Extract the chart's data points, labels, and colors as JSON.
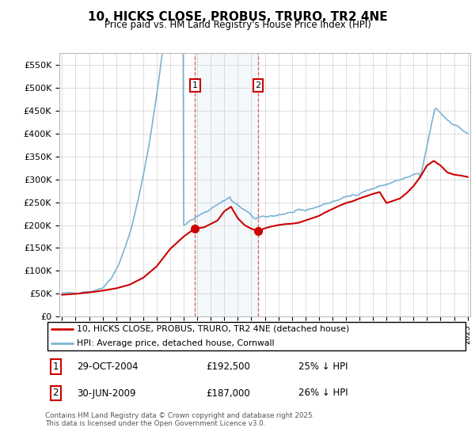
{
  "title": "10, HICKS CLOSE, PROBUS, TRURO, TR2 4NE",
  "subtitle": "Price paid vs. HM Land Registry's House Price Index (HPI)",
  "ylim": [
    0,
    575000
  ],
  "yticks": [
    0,
    50000,
    100000,
    150000,
    200000,
    250000,
    300000,
    350000,
    400000,
    450000,
    500000,
    550000
  ],
  "ytick_labels": [
    "£0",
    "£50K",
    "£100K",
    "£150K",
    "£200K",
    "£250K",
    "£300K",
    "£350K",
    "£400K",
    "£450K",
    "£500K",
    "£550K"
  ],
  "hpi_color": "#7ab3d4",
  "price_color": "#cc0000",
  "x_start_year": 1995,
  "x_end_year": 2025,
  "marker1_year": 2004.83,
  "marker2_year": 2009.5,
  "marker1_price": 192500,
  "marker2_price": 187000,
  "legend1": "10, HICKS CLOSE, PROBUS, TRURO, TR2 4NE (detached house)",
  "legend2": "HPI: Average price, detached house, Cornwall",
  "row1_box": "1",
  "row1_date": "29-OCT-2004",
  "row1_price": "£192,500",
  "row1_pct": "25% ↓ HPI",
  "row2_box": "2",
  "row2_date": "30-JUN-2009",
  "row2_price": "£187,000",
  "row2_pct": "26% ↓ HPI",
  "footnote": "Contains HM Land Registry data © Crown copyright and database right 2025.\nThis data is licensed under the Open Government Licence v3.0.",
  "hpi_years": [
    1995.0,
    1995.083,
    1995.167,
    1995.25,
    1995.333,
    1995.417,
    1995.5,
    1995.583,
    1995.667,
    1995.75,
    1995.833,
    1995.917,
    1996.0,
    1996.083,
    1996.167,
    1996.25,
    1996.333,
    1996.417,
    1996.5,
    1996.583,
    1996.667,
    1996.75,
    1996.833,
    1996.917,
    1997.0,
    1997.083,
    1997.167,
    1997.25,
    1997.333,
    1997.417,
    1997.5,
    1997.583,
    1997.667,
    1997.75,
    1997.833,
    1997.917,
    1998.0,
    1998.083,
    1998.167,
    1998.25,
    1998.333,
    1998.417,
    1998.5,
    1998.583,
    1998.667,
    1998.75,
    1998.833,
    1998.917,
    1999.0,
    1999.083,
    1999.167,
    1999.25,
    1999.333,
    1999.417,
    1999.5,
    1999.583,
    1999.667,
    1999.75,
    1999.833,
    1999.917,
    2000.0,
    2000.083,
    2000.167,
    2000.25,
    2000.333,
    2000.417,
    2000.5,
    2000.583,
    2000.667,
    2000.75,
    2000.833,
    2000.917,
    2001.0,
    2001.083,
    2001.167,
    2001.25,
    2001.333,
    2001.417,
    2001.5,
    2001.583,
    2001.667,
    2001.75,
    2001.833,
    2001.917,
    2002.0,
    2002.083,
    2002.167,
    2002.25,
    2002.333,
    2002.417,
    2002.5,
    2002.583,
    2002.667,
    2002.75,
    2002.833,
    2002.917,
    2003.0,
    2003.083,
    2003.167,
    2003.25,
    2003.333,
    2003.417,
    2003.5,
    2003.583,
    2003.667,
    2003.75,
    2003.833,
    2003.917,
    2004.0,
    2004.083,
    2004.167,
    2004.25,
    2004.333,
    2004.417,
    2004.5,
    2004.583,
    2004.667,
    2004.75,
    2004.833,
    2004.917,
    2005.0,
    2005.083,
    2005.167,
    2005.25,
    2005.333,
    2005.417,
    2005.5,
    2005.583,
    2005.667,
    2005.75,
    2005.833,
    2005.917,
    2006.0,
    2006.083,
    2006.167,
    2006.25,
    2006.333,
    2006.417,
    2006.5,
    2006.583,
    2006.667,
    2006.75,
    2006.833,
    2006.917,
    2007.0,
    2007.083,
    2007.167,
    2007.25,
    2007.333,
    2007.417,
    2007.5,
    2007.583,
    2007.667,
    2007.75,
    2007.833,
    2007.917,
    2008.0,
    2008.083,
    2008.167,
    2008.25,
    2008.333,
    2008.417,
    2008.5,
    2008.583,
    2008.667,
    2008.75,
    2008.833,
    2008.917,
    2009.0,
    2009.083,
    2009.167,
    2009.25,
    2009.333,
    2009.417,
    2009.5,
    2009.583,
    2009.667,
    2009.75,
    2009.833,
    2009.917,
    2010.0,
    2010.083,
    2010.167,
    2010.25,
    2010.333,
    2010.417,
    2010.5,
    2010.583,
    2010.667,
    2010.75,
    2010.833,
    2010.917,
    2011.0,
    2011.083,
    2011.167,
    2011.25,
    2011.333,
    2011.417,
    2011.5,
    2011.583,
    2011.667,
    2011.75,
    2011.833,
    2011.917,
    2012.0,
    2012.083,
    2012.167,
    2012.25,
    2012.333,
    2012.417,
    2012.5,
    2012.583,
    2012.667,
    2012.75,
    2012.833,
    2012.917,
    2013.0,
    2013.083,
    2013.167,
    2013.25,
    2013.333,
    2013.417,
    2013.5,
    2013.583,
    2013.667,
    2013.75,
    2013.833,
    2013.917,
    2014.0,
    2014.083,
    2014.167,
    2014.25,
    2014.333,
    2014.417,
    2014.5,
    2014.583,
    2014.667,
    2014.75,
    2014.833,
    2014.917,
    2015.0,
    2015.083,
    2015.167,
    2015.25,
    2015.333,
    2015.417,
    2015.5,
    2015.583,
    2015.667,
    2015.75,
    2015.833,
    2015.917,
    2016.0,
    2016.083,
    2016.167,
    2016.25,
    2016.333,
    2016.417,
    2016.5,
    2016.583,
    2016.667,
    2016.75,
    2016.833,
    2016.917,
    2017.0,
    2017.083,
    2017.167,
    2017.25,
    2017.333,
    2017.417,
    2017.5,
    2017.583,
    2017.667,
    2017.75,
    2017.833,
    2017.917,
    2018.0,
    2018.083,
    2018.167,
    2018.25,
    2018.333,
    2018.417,
    2018.5,
    2018.583,
    2018.667,
    2018.75,
    2018.833,
    2018.917,
    2019.0,
    2019.083,
    2019.167,
    2019.25,
    2019.333,
    2019.417,
    2019.5,
    2019.583,
    2019.667,
    2019.75,
    2019.833,
    2019.917,
    2020.0,
    2020.083,
    2020.167,
    2020.25,
    2020.333,
    2020.417,
    2020.5,
    2020.583,
    2020.667,
    2020.75,
    2020.833,
    2020.917,
    2021.0,
    2021.083,
    2021.167,
    2021.25,
    2021.333,
    2021.417,
    2021.5,
    2021.583,
    2021.667,
    2021.75,
    2021.833,
    2021.917,
    2022.0,
    2022.083,
    2022.167,
    2022.25,
    2022.333,
    2022.417,
    2022.5,
    2022.583,
    2022.667,
    2022.75,
    2022.833,
    2022.917,
    2023.0,
    2023.083,
    2023.167,
    2023.25,
    2023.333,
    2023.417,
    2023.5,
    2023.583,
    2023.667,
    2023.75,
    2023.833,
    2023.917,
    2024.0,
    2024.083,
    2024.167,
    2024.25,
    2024.333,
    2024.417,
    2024.5,
    2024.583,
    2024.667,
    2024.75,
    2024.833,
    2024.917,
    2025.0
  ],
  "price_years": [
    1995.0,
    1996.0,
    1997.0,
    1998.0,
    1999.0,
    2000.0,
    2001.0,
    2002.0,
    2003.0,
    2004.0,
    2004.83,
    2005.5,
    2006.5,
    2007.0,
    2007.5,
    2008.0,
    2008.5,
    2009.0,
    2009.5,
    2010.0,
    2010.5,
    2011.0,
    2011.5,
    2012.0,
    2012.5,
    2013.0,
    2013.5,
    2014.0,
    2014.5,
    2015.0,
    2015.5,
    2016.0,
    2016.5,
    2017.0,
    2017.5,
    2018.0,
    2018.5,
    2019.0,
    2019.5,
    2020.0,
    2020.5,
    2021.0,
    2021.5,
    2022.0,
    2022.5,
    2023.0,
    2023.5,
    2024.0,
    2024.5,
    2025.0
  ],
  "price_vals": [
    48000,
    50000,
    53000,
    57000,
    62000,
    70000,
    85000,
    110000,
    148000,
    175000,
    192500,
    195000,
    210000,
    230000,
    240000,
    215000,
    200000,
    192000,
    187000,
    193000,
    197000,
    200000,
    202000,
    203000,
    205000,
    210000,
    215000,
    220000,
    228000,
    235000,
    242000,
    248000,
    252000,
    258000,
    263000,
    268000,
    272000,
    248000,
    253000,
    258000,
    270000,
    285000,
    305000,
    330000,
    340000,
    330000,
    315000,
    310000,
    308000,
    305000
  ]
}
